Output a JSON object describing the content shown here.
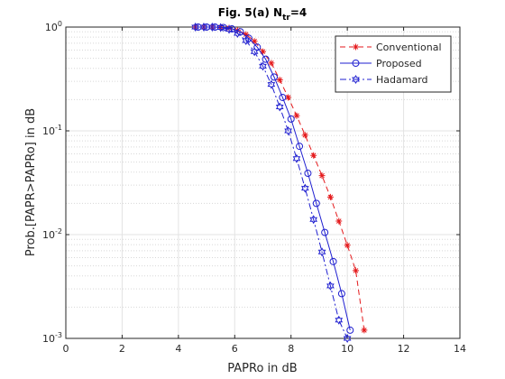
{
  "chart_data": {
    "type": "line",
    "title": [
      "Fig. 5(a) N",
      "tr",
      "=4"
    ],
    "x_label": "PAPRo in dB",
    "y_label": "Prob.[PAPR>PAPRo] in dB",
    "y_scale": "log",
    "xlim": [
      0,
      14
    ],
    "xticks": [
      0,
      2,
      4,
      6,
      8,
      10,
      12,
      14
    ],
    "ylim": [
      0.001,
      1
    ],
    "yticks": [
      {
        "value": 0.001,
        "label": "10",
        "exponent": "-3"
      },
      {
        "value": 0.01,
        "label": "10",
        "exponent": "-2"
      },
      {
        "value": 0.1,
        "label": "10",
        "exponent": "-1"
      },
      {
        "value": 1,
        "label": "10",
        "exponent": "0"
      }
    ],
    "grid": true,
    "minor_grid": true,
    "legend": "northeast",
    "series": [
      {
        "name": "Conventional",
        "color": "#e41a1c",
        "dash": "dashed",
        "marker": "asterisk",
        "x": [
          4.6,
          4.9,
          5.2,
          5.5,
          5.8,
          6.1,
          6.4,
          6.7,
          7.0,
          7.3,
          7.6,
          7.9,
          8.2,
          8.5,
          8.8,
          9.1,
          9.4,
          9.7,
          10.0,
          10.3,
          10.6
        ],
        "values": [
          1,
          1,
          1,
          0.995,
          0.98,
          0.93,
          0.85,
          0.73,
          0.58,
          0.45,
          0.31,
          0.21,
          0.14,
          0.091,
          0.058,
          0.037,
          0.023,
          0.0135,
          0.0079,
          0.0045,
          0.0012
        ]
      },
      {
        "name": "Proposed",
        "color": "#1f1fd0",
        "dash": "solid",
        "marker": "circle",
        "x": [
          4.7,
          5.0,
          5.3,
          5.6,
          5.9,
          6.2,
          6.5,
          6.8,
          7.1,
          7.4,
          7.7,
          8.0,
          8.3,
          8.6,
          8.9,
          9.2,
          9.5,
          9.8,
          10.1
        ],
        "values": [
          1,
          1,
          1,
          0.99,
          0.96,
          0.9,
          0.78,
          0.64,
          0.49,
          0.33,
          0.21,
          0.13,
          0.071,
          0.039,
          0.02,
          0.0105,
          0.0055,
          0.0027,
          0.0012
        ]
      },
      {
        "name": "Hadamard",
        "color": "#1f1fd0",
        "dash": "dashdot",
        "marker": "hexagram",
        "x": [
          4.6,
          4.9,
          5.2,
          5.5,
          5.8,
          6.1,
          6.4,
          6.7,
          7.0,
          7.3,
          7.6,
          7.9,
          8.2,
          8.5,
          8.8,
          9.1,
          9.4,
          9.7,
          10.0
        ],
        "values": [
          1,
          1,
          1,
          0.99,
          0.95,
          0.87,
          0.74,
          0.58,
          0.42,
          0.28,
          0.17,
          0.1,
          0.054,
          0.028,
          0.014,
          0.0068,
          0.0032,
          0.0015,
          0.001
        ]
      }
    ]
  }
}
